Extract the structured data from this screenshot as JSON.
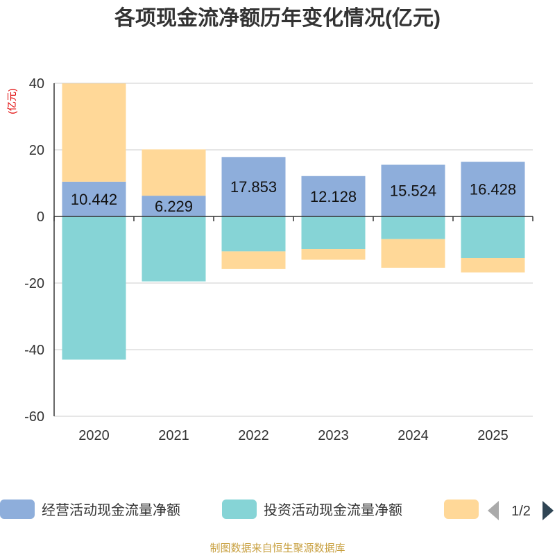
{
  "chart_data": {
    "type": "bar",
    "stacked": true,
    "title": "各项现金流净额历年变化情况(亿元)",
    "unit_label": "(亿元)",
    "categories": [
      "2020",
      "2021",
      "2022",
      "2023",
      "2024",
      "2025"
    ],
    "ylim": [
      -60,
      40
    ],
    "yticks": [
      40,
      20,
      0,
      -20,
      -40,
      -60
    ],
    "grid": true,
    "series": [
      {
        "name": "经营活动现金流量净额",
        "color": "#8eaedb",
        "values": [
          10.442,
          6.229,
          17.853,
          12.128,
          15.524,
          16.428
        ],
        "labels": [
          "10.442",
          "6.229",
          "17.853",
          "12.128",
          "15.524",
          "16.428"
        ]
      },
      {
        "name": "投资活动现金流量净额",
        "color": "#86d4d6",
        "values": [
          -43.0,
          -19.5,
          -10.5,
          -9.8,
          -6.8,
          -12.5
        ]
      },
      {
        "name": "",
        "color": "#ffd898",
        "values": [
          29.5,
          13.9,
          -5.3,
          -3.2,
          -8.6,
          -4.3
        ]
      }
    ],
    "legend": {
      "position": "bottom",
      "page": "1/2"
    },
    "source": "制图数据来自恒生聚源数据库"
  }
}
